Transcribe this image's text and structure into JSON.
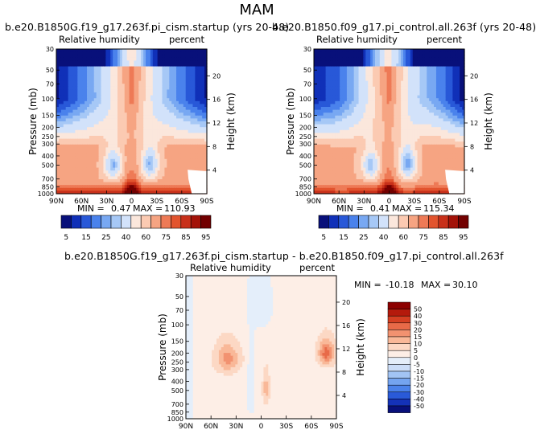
{
  "main_title": "MAM",
  "colors": {
    "relhum_scale": [
      "#08107a",
      "#1030b8",
      "#2858d8",
      "#4a82ec",
      "#78a8f2",
      "#a6c8f6",
      "#d2e2fa",
      "#fbe7dc",
      "#fbcab2",
      "#f6a482",
      "#ee7a56",
      "#e2542e",
      "#c8301a",
      "#a31208",
      "#720000"
    ],
    "diff_scale": [
      "#08107a",
      "#1432b8",
      "#2a5ad8",
      "#4b82ea",
      "#74a4f0",
      "#a2c4f4",
      "#cbddf8",
      "#e4eefa",
      "#fdeee6",
      "#fcd8c4",
      "#f9b898",
      "#f29270",
      "#e86a48",
      "#d43f22",
      "#b41a0c",
      "#8c0000"
    ]
  },
  "chart_data": [
    {
      "type": "heatmap",
      "id": "panel-left",
      "title": "b.e20.B1850G.f19_g17.263f.pi_cism.startup (yrs 20-48)",
      "left_label": "Relative humidity",
      "right_label": "percent",
      "ylabel": "Pressure (mb)",
      "ylabel_right": "Height (km)",
      "x_ticks": [
        "90N",
        "60N",
        "30N",
        "0",
        "30S",
        "60S",
        "90S"
      ],
      "x_range": [
        90,
        -90
      ],
      "y_ticks": [
        "30",
        "50",
        "70",
        "100",
        "150",
        "200",
        "250",
        "300",
        "400",
        "500",
        "700",
        "850",
        "1000"
      ],
      "y_range_mb": [
        30,
        1000
      ],
      "height_ticks": [
        "20",
        "16",
        "12",
        "8",
        "4"
      ],
      "min_label": "MIN =",
      "min_value": "0.47",
      "max_label": "MAX =",
      "max_value": "110.93"
    },
    {
      "type": "heatmap",
      "id": "panel-right",
      "title": "b.e20.B1850.f09_g17.pi_control.all.263f (yrs 20-48)",
      "left_label": "Relative humidity",
      "right_label": "percent",
      "ylabel": "Pressure (mb)",
      "ylabel_right": "Height (km)",
      "x_ticks": [
        "90N",
        "60N",
        "30N",
        "0",
        "30S",
        "60S",
        "90S"
      ],
      "x_range": [
        90,
        -90
      ],
      "y_ticks": [
        "30",
        "50",
        "70",
        "100",
        "150",
        "200",
        "250",
        "300",
        "400",
        "500",
        "700",
        "850",
        "1000"
      ],
      "y_range_mb": [
        30,
        1000
      ],
      "height_ticks": [
        "20",
        "16",
        "12",
        "8",
        "4"
      ],
      "min_label": "MIN =",
      "min_value": "0.41",
      "max_label": "MAX =",
      "max_value": "115.34"
    },
    {
      "type": "heatmap",
      "id": "panel-diff",
      "title": "b.e20.B1850G.f19_g17.263f.pi_cism.startup - b.e20.B1850.f09_g17.pi_control.all.263f",
      "left_label": "Relative humidity",
      "right_label": "percent",
      "ylabel": "Pressure (mb)",
      "ylabel_right": "Height (km)",
      "x_ticks": [
        "90N",
        "60N",
        "30N",
        "0",
        "30S",
        "60S",
        "90S"
      ],
      "x_range": [
        90,
        -90
      ],
      "y_ticks": [
        "30",
        "50",
        "70",
        "100",
        "150",
        "200",
        "250",
        "300",
        "400",
        "500",
        "700",
        "850",
        "1000"
      ],
      "y_range_mb": [
        30,
        1000
      ],
      "height_ticks": [
        "20",
        "16",
        "12",
        "8",
        "4"
      ],
      "min_label": "MIN =",
      "min_value": "-10.18",
      "max_label": "MAX =",
      "max_value": "30.10"
    }
  ],
  "legend_relhum": {
    "orientation": "horizontal",
    "labels": [
      "5",
      "15",
      "25",
      "40",
      "60",
      "75",
      "85",
      "95"
    ]
  },
  "legend_diff": {
    "orientation": "vertical",
    "labels": [
      "50",
      "40",
      "30",
      "20",
      "15",
      "10",
      "5",
      "0",
      "-5",
      "-10",
      "-15",
      "-20",
      "-30",
      "-40",
      "-50"
    ]
  }
}
